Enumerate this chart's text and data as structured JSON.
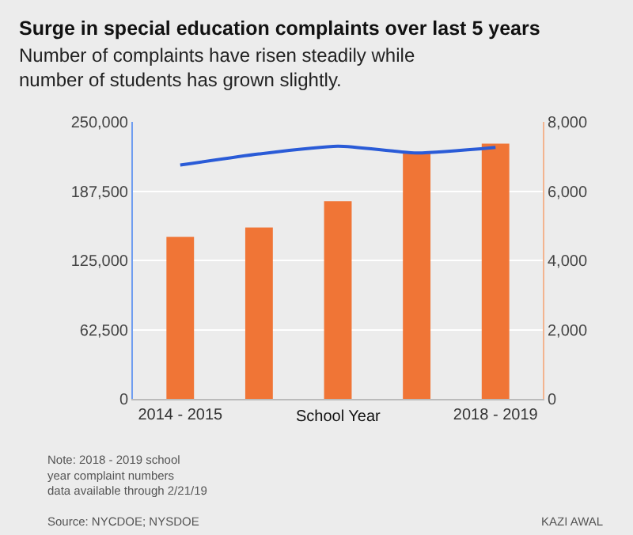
{
  "chart_data": {
    "type": "bar",
    "title": "Surge in special education complaints over last 5 years",
    "subtitle": "Number of complaints have risen steadily while number of students has grown slightly.",
    "xlabel": "School Year",
    "categories": [
      "2014 - 2015",
      null,
      null,
      null,
      "2018 - 2019"
    ],
    "series": [
      {
        "axis": "y2",
        "color": "#f07536",
        "values": [
          4680,
          4950,
          5710,
          7090,
          7370
        ]
      },
      {
        "type": "line",
        "axis": "y",
        "color": "#2a5bd7",
        "values": [
          211000,
          221000,
          228000,
          222000,
          227000
        ]
      }
    ],
    "ylim": [
      0,
      250000
    ],
    "yticks": [
      0,
      {
        "value": 62500,
        "label": "62,500"
      },
      {
        "value": 125000,
        "label": "125,000"
      },
      {
        "value": 187500,
        "label": "187,500"
      },
      {
        "value": 250000,
        "label": "250,000"
      }
    ],
    "y2lim": [
      0,
      8000
    ],
    "y2ticks": [
      0,
      {
        "value": 2000,
        "label": "2,000"
      },
      {
        "value": 4000,
        "label": "4,000"
      },
      {
        "value": 6000,
        "label": "6,000"
      },
      {
        "value": 8000,
        "label": "8,000"
      }
    ],
    "grid": "y",
    "annotations": [
      "Note: 2018 - 2019 school\nyear complaint numbers\ndata available through 2/21/19",
      "Source: NYCDOE; NYSDOE",
      "KAZI AWAL"
    ]
  }
}
